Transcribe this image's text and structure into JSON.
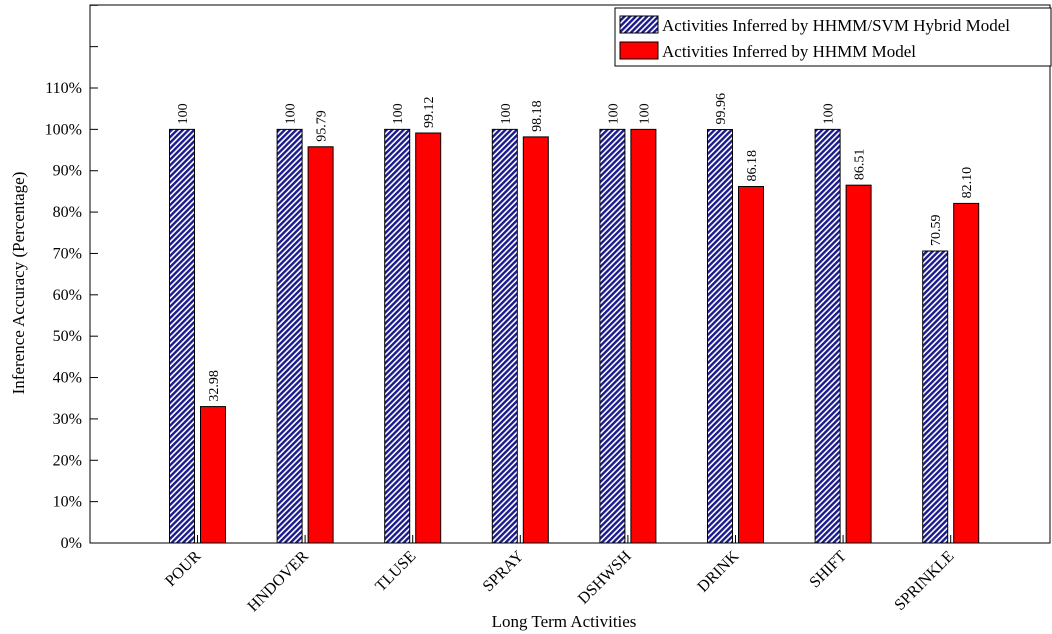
{
  "chart_data": {
    "type": "bar",
    "xlabel": "Long Term Activities",
    "ylabel": "Inference Accuracy (Percentage)",
    "ylim": [
      0,
      110
    ],
    "y_tick_values": [
      0,
      10,
      20,
      30,
      40,
      50,
      60,
      70,
      80,
      90,
      100,
      110
    ],
    "y_tick_labels": [
      "0%",
      "10%",
      "20%",
      "30%",
      "40%",
      "50%",
      "60%",
      "70%",
      "80%",
      "90%",
      "100%",
      "110%"
    ],
    "categories": [
      "POUR",
      "HNDOVER",
      "TLUSE",
      "SPRAY",
      "DSHWSH",
      "DRINK",
      "SHIFT",
      "SPRINKLE"
    ],
    "legend_position": "top-right",
    "series": [
      {
        "name": "Activities Inferred by HHMM/SVM Hybrid Model",
        "color": "#1a1a8c",
        "pattern": "diagonal-hatch",
        "values": [
          100,
          100,
          100,
          100,
          100,
          99.96,
          100,
          70.59
        ],
        "labels": [
          "100",
          "100",
          "100",
          "100",
          "100",
          "99.96",
          "100",
          "70.59"
        ]
      },
      {
        "name": "Activities Inferred by HHMM Model",
        "color": "#ff0000",
        "pattern": "solid",
        "values": [
          32.98,
          95.79,
          99.12,
          98.18,
          100,
          86.18,
          86.51,
          82.1
        ],
        "labels": [
          "32.98",
          "95.79",
          "99.12",
          "98.18",
          "100",
          "86.18",
          "86.51",
          "82.10"
        ]
      }
    ]
  }
}
